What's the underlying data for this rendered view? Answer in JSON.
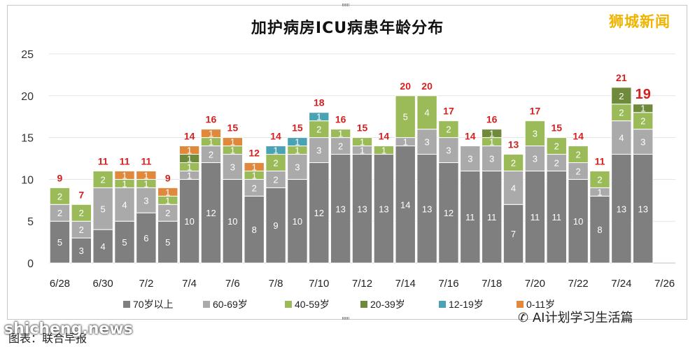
{
  "source_label": "图表：联合早报",
  "watermarks": {
    "brand": "狮城新闻",
    "site": "shicheng.news",
    "account": "AI计划学习生活篇"
  },
  "chart_data": {
    "type": "bar",
    "stacked": true,
    "title": "加护病房ICU病患年龄分布",
    "xlabel": "",
    "ylabel": "",
    "ylim": [
      0,
      25
    ],
    "yticks": [
      0,
      5,
      10,
      15,
      20,
      25
    ],
    "grid": "horizontal",
    "legend_position": "bottom",
    "categories": [
      "6/28",
      "6/29",
      "6/30",
      "7/1",
      "7/2",
      "7/3",
      "7/4",
      "7/5",
      "7/6",
      "7/7",
      "7/8",
      "7/9",
      "7/10",
      "7/11",
      "7/12",
      "7/13",
      "7/14",
      "7/15",
      "7/16",
      "7/17",
      "7/18",
      "7/19",
      "7/20",
      "7/21",
      "7/22",
      "7/23",
      "7/24",
      "7/25",
      "7/26"
    ],
    "xtick_labels": [
      "6/28",
      "",
      "6/30",
      "",
      "7/2",
      "",
      "7/4",
      "",
      "7/6",
      "",
      "7/8",
      "",
      "7/10",
      "",
      "7/12",
      "",
      "7/14",
      "",
      "7/16",
      "",
      "7/18",
      "",
      "7/20",
      "",
      "7/22",
      "",
      "7/24",
      "",
      "7/26"
    ],
    "totals": [
      9,
      7,
      11,
      11,
      11,
      9,
      14,
      16,
      15,
      12,
      14,
      15,
      18,
      16,
      15,
      14,
      20,
      20,
      17,
      14,
      16,
      13,
      17,
      15,
      14,
      11,
      21,
      19,
      null
    ],
    "series": [
      {
        "name": "70岁以上",
        "color": "#7f7f7f",
        "values": [
          5,
          3,
          4,
          5,
          6,
          5,
          10,
          12,
          10,
          8,
          9,
          10,
          12,
          13,
          13,
          13,
          14,
          13,
          12,
          11,
          11,
          7,
          11,
          11,
          10,
          8,
          13,
          13,
          0
        ]
      },
      {
        "name": "60-69岁",
        "color": "#aaaaaa",
        "values": [
          2,
          2,
          5,
          4,
          3,
          2,
          1,
          2,
          3,
          2,
          2,
          3,
          3,
          2,
          1,
          0,
          1,
          3,
          3,
          3,
          3,
          4,
          3,
          2,
          2,
          1,
          4,
          3,
          0
        ]
      },
      {
        "name": "40-59岁",
        "color": "#9bbb59",
        "values": [
          2,
          2,
          2,
          1,
          1,
          1,
          1,
          1,
          1,
          1,
          2,
          1,
          2,
          1,
          1,
          1,
          5,
          4,
          2,
          0,
          1,
          2,
          3,
          2,
          2,
          2,
          2,
          2,
          0
        ]
      },
      {
        "name": "20-39岁",
        "color": "#6e8a3a",
        "values": [
          0,
          0,
          0,
          0,
          0,
          0,
          1,
          0,
          0,
          0,
          0,
          0,
          0,
          0,
          0,
          0,
          0,
          0,
          0,
          0,
          1,
          0,
          0,
          0,
          0,
          0,
          2,
          1,
          0
        ]
      },
      {
        "name": "12-19岁",
        "color": "#4aa3b5",
        "values": [
          0,
          0,
          0,
          0,
          0,
          0,
          0,
          0,
          0,
          0,
          1,
          1,
          1,
          0,
          0,
          0,
          0,
          0,
          0,
          0,
          0,
          0,
          0,
          0,
          0,
          0,
          0,
          0,
          0
        ]
      },
      {
        "name": "0-11岁",
        "color": "#e0883c",
        "values": [
          0,
          0,
          0,
          1,
          1,
          1,
          1,
          1,
          1,
          1,
          0,
          0,
          0,
          0,
          0,
          0,
          0,
          0,
          0,
          0,
          0,
          0,
          0,
          0,
          0,
          0,
          0,
          0,
          0
        ]
      }
    ]
  }
}
